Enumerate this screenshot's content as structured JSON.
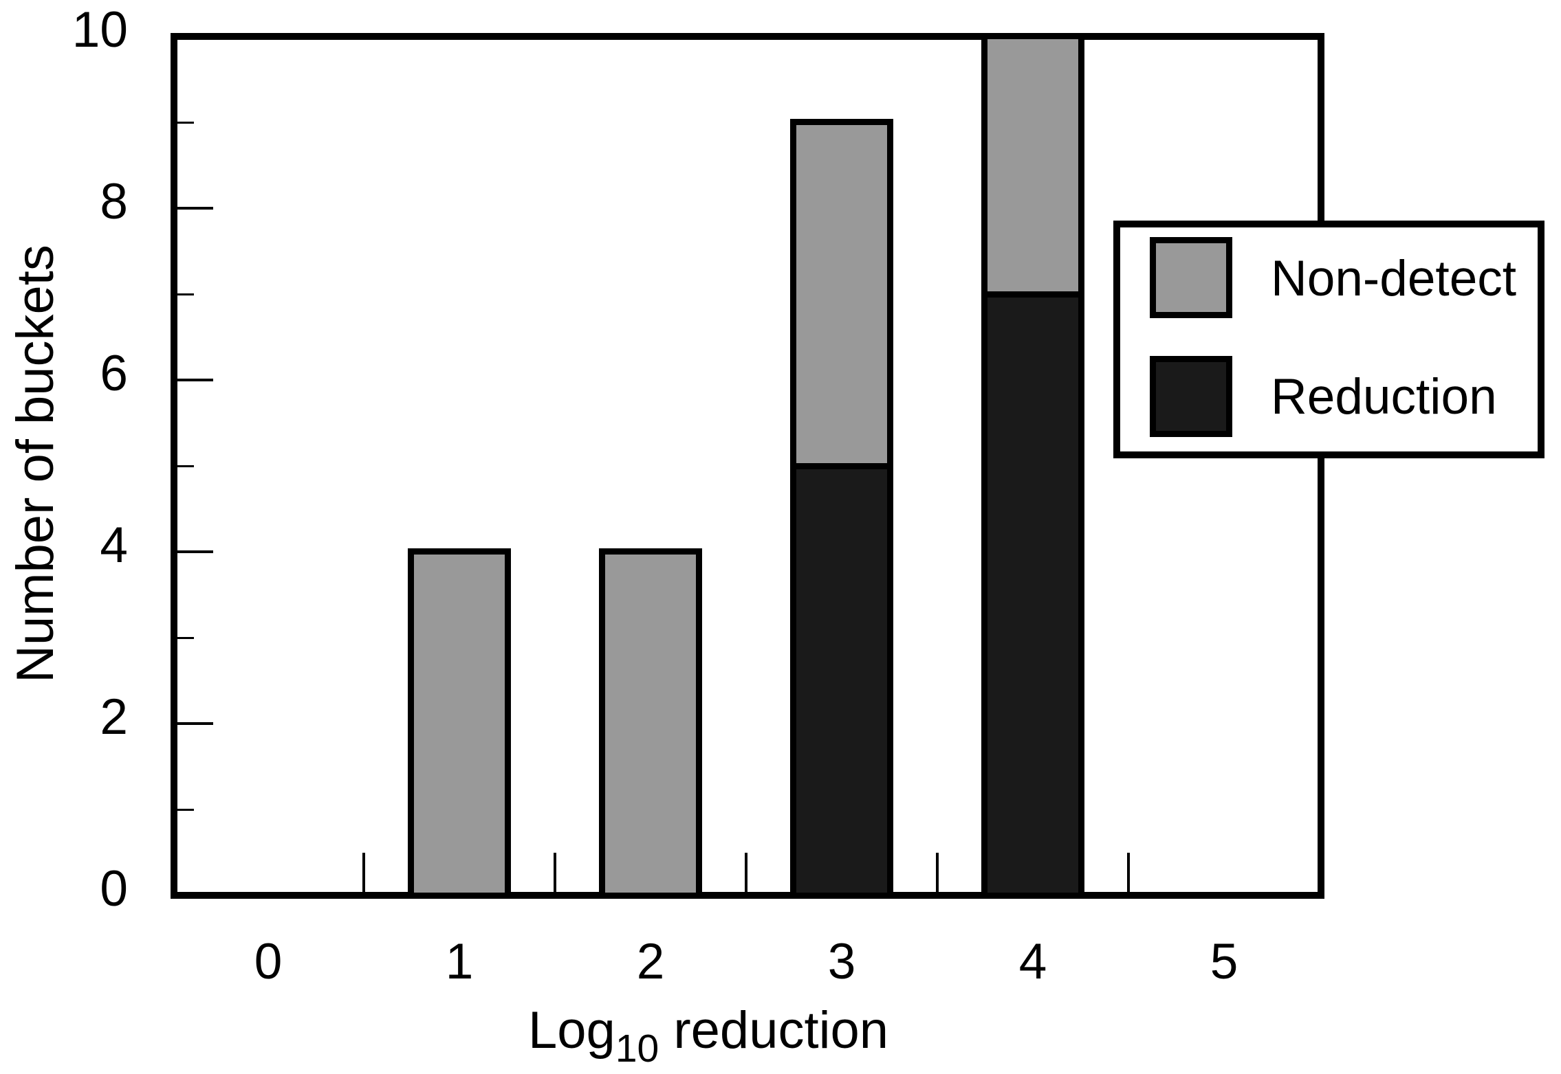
{
  "chart_data": {
    "type": "bar",
    "stacked": true,
    "title": "",
    "categories": [
      0,
      1,
      2,
      3,
      4,
      5
    ],
    "series": [
      {
        "name": "Reduction",
        "color": "#1a1a1a",
        "values": [
          0,
          0,
          0,
          5,
          7,
          0
        ]
      },
      {
        "name": "Non-detect",
        "color": "#999999",
        "values": [
          0,
          4,
          4,
          4,
          3,
          0
        ]
      }
    ],
    "bar_width_units": 0.54,
    "xlabel": {
      "text": "Log10 reduction",
      "prefix": "Log",
      "subscript": "10",
      "suffix": "reduction"
    },
    "ylabel": "Number of buckets",
    "xlim": [
      -0.5,
      5.5
    ],
    "ylim": [
      0,
      10
    ],
    "x_tick_labels": [
      "0",
      "1",
      "2",
      "3",
      "4",
      "5"
    ],
    "x_tick_marks": [
      0.5,
      1.5,
      2.5,
      3.5,
      4.5
    ],
    "y_major_ticks": [
      2,
      4,
      6,
      8
    ],
    "y_minor_ticks": [
      1,
      3,
      5,
      7,
      9
    ],
    "y_tick_labels": [
      {
        "value": 0,
        "label": "0"
      },
      {
        "value": 2,
        "label": "2"
      },
      {
        "value": 4,
        "label": "4"
      },
      {
        "value": 6,
        "label": "6"
      },
      {
        "value": 8,
        "label": "8"
      },
      {
        "value": 10,
        "label": "10"
      }
    ],
    "legend": {
      "position": "upper-right",
      "entries": [
        {
          "label": "Non-detect",
          "color": "#999999"
        },
        {
          "label": "Reduction",
          "color": "#1a1a1a"
        }
      ]
    },
    "grid": false,
    "frame_color": "#000000",
    "background_color": "#ffffff"
  }
}
